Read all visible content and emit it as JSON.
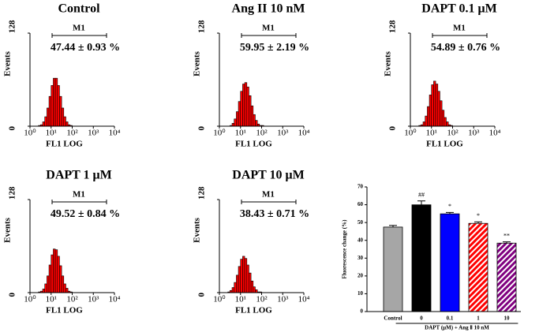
{
  "chart_data": [
    {
      "type": "histogram",
      "title": "Control",
      "gate": "M1",
      "annotation": "47.44 ± 0.93 %",
      "x_label": "FL1 LOG",
      "y_label": "Events",
      "xlog": true,
      "xlim": [
        1,
        10000
      ],
      "ylim": [
        0,
        128
      ],
      "yticks": [
        0,
        128
      ],
      "xticks": [
        {
          "value": 1,
          "label": "10⁰"
        },
        {
          "value": 10,
          "label": "10¹"
        },
        {
          "value": 100,
          "label": "10²"
        },
        {
          "value": 1000,
          "label": "10³"
        },
        {
          "value": 10000,
          "label": "10⁴"
        }
      ],
      "bins": [
        2.51,
        3.16,
        3.98,
        5.01,
        6.31,
        7.94,
        10,
        12.6,
        15.8,
        20,
        25.1,
        31.6,
        39.8,
        50.1,
        63.1,
        79.4,
        100,
        126,
        158
      ],
      "values": [
        1,
        2,
        6,
        13,
        25,
        41,
        56,
        66,
        66,
        56,
        41,
        25,
        13,
        6,
        2,
        1,
        0,
        0
      ],
      "color": "#ff0000"
    },
    {
      "type": "histogram",
      "title": "Ang II  10 nM",
      "gate": "M1",
      "annotation": "59.95 ± 2.19 %",
      "x_label": "FL1 LOG",
      "y_label": "Events",
      "xlog": true,
      "xlim": [
        1,
        10000
      ],
      "ylim": [
        0,
        128
      ],
      "yticks": [
        0,
        128
      ],
      "xticks": [
        {
          "value": 1,
          "label": "10⁰"
        },
        {
          "value": 10,
          "label": "10¹"
        },
        {
          "value": 100,
          "label": "10²"
        },
        {
          "value": 1000,
          "label": "10³"
        },
        {
          "value": 10000,
          "label": "10⁴"
        }
      ],
      "bins": [
        2.51,
        3.16,
        3.98,
        5.01,
        6.31,
        7.94,
        10,
        12.6,
        15.8,
        20,
        25.1,
        31.6,
        39.8,
        50.1,
        63.1,
        79.4,
        100,
        126,
        158
      ],
      "values": [
        0,
        1,
        4,
        10,
        20,
        34,
        48,
        58,
        60,
        54,
        42,
        28,
        16,
        8,
        3,
        1,
        1,
        0
      ],
      "color": "#ff0000"
    },
    {
      "type": "histogram",
      "title": "DAPT 0.1 μM",
      "gate": "M1",
      "annotation": "54.89 ± 0.76 %",
      "x_label": "FL1 LOG",
      "y_label": "Events",
      "xlog": true,
      "xlim": [
        1,
        10000
      ],
      "ylim": [
        0,
        128
      ],
      "yticks": [
        0,
        128
      ],
      "xticks": [
        {
          "value": 1,
          "label": "10⁰"
        },
        {
          "value": 10,
          "label": "10¹"
        },
        {
          "value": 100,
          "label": "10²"
        },
        {
          "value": 1000,
          "label": "10³"
        },
        {
          "value": 10000,
          "label": "10⁴"
        }
      ],
      "bins": [
        2.51,
        3.16,
        3.98,
        5.01,
        6.31,
        7.94,
        10,
        12.6,
        15.8,
        20,
        25.1,
        31.6,
        39.8,
        50.1,
        63.1,
        79.4,
        100,
        126,
        158
      ],
      "values": [
        1,
        2,
        6,
        14,
        27,
        43,
        57,
        62,
        58,
        48,
        35,
        22,
        12,
        6,
        2,
        1,
        0,
        0
      ],
      "color": "#ff0000"
    },
    {
      "type": "histogram",
      "title": "DAPT 1 μM",
      "gate": "M1",
      "annotation": "49.52 ± 0.84 %",
      "x_label": "FL1 LOG",
      "y_label": "Events",
      "xlog": true,
      "xlim": [
        1,
        10000
      ],
      "ylim": [
        0,
        128
      ],
      "yticks": [
        0,
        128
      ],
      "xticks": [
        {
          "value": 1,
          "label": "10⁰"
        },
        {
          "value": 10,
          "label": "10¹"
        },
        {
          "value": 100,
          "label": "10²"
        },
        {
          "value": 1000,
          "label": "10³"
        },
        {
          "value": 10000,
          "label": "10⁴"
        }
      ],
      "bins": [
        2.51,
        3.16,
        3.98,
        5.01,
        6.31,
        7.94,
        10,
        12.6,
        15.8,
        20,
        25.1,
        31.6,
        39.8,
        50.1,
        63.1,
        79.4,
        100,
        126,
        158
      ],
      "values": [
        1,
        2,
        5,
        12,
        23,
        38,
        52,
        60,
        59,
        50,
        37,
        23,
        12,
        6,
        2,
        1,
        0,
        0
      ],
      "color": "#ff0000"
    },
    {
      "type": "histogram",
      "title": "DAPT 10 μM",
      "gate": "M1",
      "annotation": "38.43 ± 0.71 %",
      "x_label": "FL1 LOG",
      "y_label": "Events",
      "xlog": true,
      "xlim": [
        1,
        10000
      ],
      "ylim": [
        0,
        128
      ],
      "yticks": [
        0,
        128
      ],
      "xticks": [
        {
          "value": 1,
          "label": "10⁰"
        },
        {
          "value": 10,
          "label": "10¹"
        },
        {
          "value": 100,
          "label": "10²"
        },
        {
          "value": 1000,
          "label": "10³"
        },
        {
          "value": 10000,
          "label": "10⁴"
        }
      ],
      "bins": [
        2.51,
        3.16,
        3.98,
        5.01,
        6.31,
        7.94,
        10,
        12.6,
        15.8,
        20,
        25.1,
        31.6,
        39.8,
        50.1,
        63.1,
        79.4,
        100,
        126,
        158
      ],
      "values": [
        1,
        3,
        7,
        14,
        24,
        36,
        46,
        50,
        47,
        38,
        27,
        16,
        8,
        4,
        1,
        1,
        0,
        0
      ],
      "color": "#ff0000"
    },
    {
      "type": "bar",
      "y_label": "Fluorescence change (%)",
      "x_label": "DAPT (μM) + Ang Ⅱ 10 nM",
      "categories": [
        "Control",
        "0",
        "0.1",
        "1",
        "10"
      ],
      "values": [
        47.44,
        59.95,
        54.89,
        49.52,
        38.43
      ],
      "errors": [
        0.93,
        2.19,
        0.76,
        0.84,
        0.71
      ],
      "colors": [
        "#a6a6a6",
        "#000000",
        "#0000ff",
        "#ff0000",
        "#800080"
      ],
      "hatch": [
        false,
        false,
        false,
        true,
        true
      ],
      "annotations": [
        {
          "index": 1,
          "text": "##"
        },
        {
          "index": 2,
          "text": "*"
        },
        {
          "index": 3,
          "text": "*"
        },
        {
          "index": 4,
          "text": "**"
        }
      ],
      "ylim": [
        0,
        70
      ],
      "yticks": [
        0,
        10,
        20,
        30,
        40,
        50,
        60,
        70
      ]
    }
  ]
}
